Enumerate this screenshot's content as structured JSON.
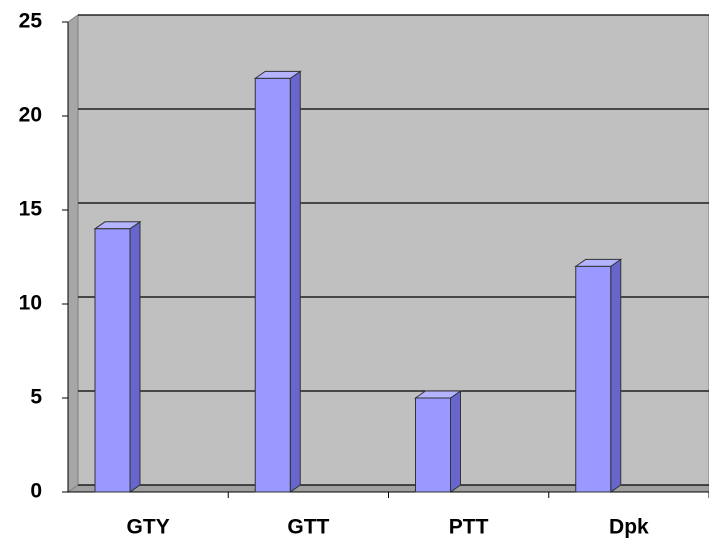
{
  "chart_data": {
    "type": "bar3d",
    "categories": [
      "GTY",
      "GTT",
      "PTT",
      "Dpk"
    ],
    "values": [
      14,
      22,
      5,
      12
    ],
    "color": "#9999ff",
    "ylim": [
      0,
      25
    ],
    "yticks": [
      0,
      5,
      10,
      15,
      20,
      25
    ],
    "grid": true
  }
}
